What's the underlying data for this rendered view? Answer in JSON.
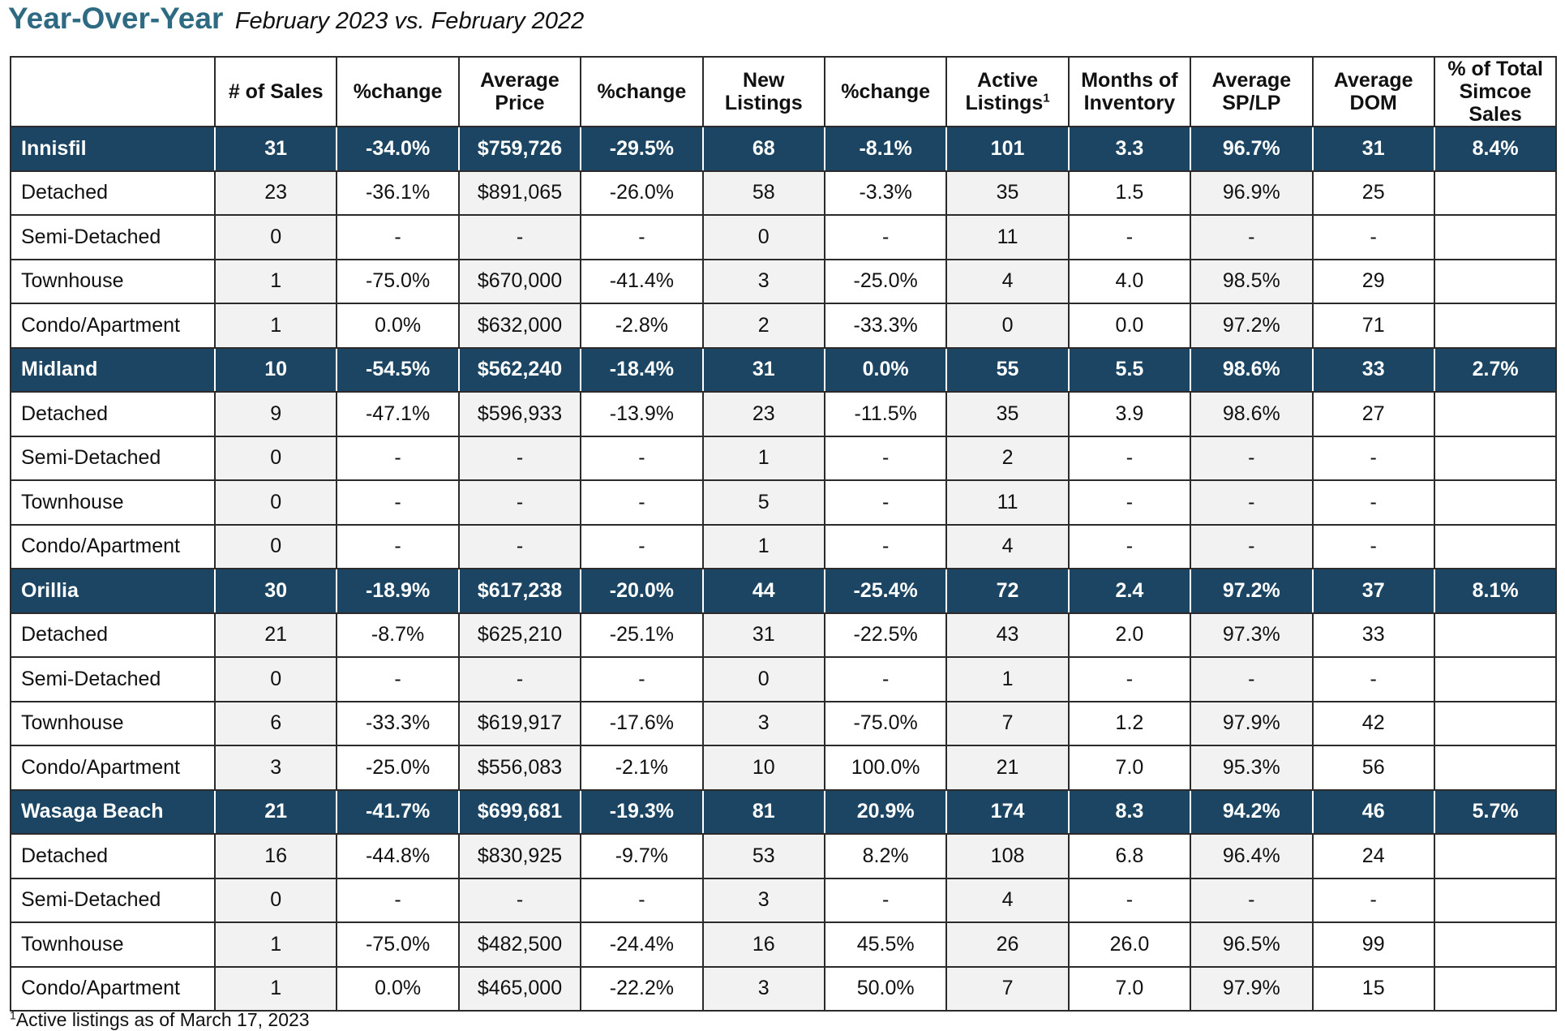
{
  "title": {
    "main": "Year-Over-Year",
    "sub": "February 2023 vs. February 2022"
  },
  "table": {
    "headers": [
      "",
      "# of Sales",
      "%change",
      "Average Price",
      "%change",
      "New Listings",
      "%change",
      "Active Listings",
      "Months of Inventory",
      "Average SP/LP",
      "Average DOM",
      "% of Total Simcoe Sales"
    ],
    "header_footnote_mark": "1",
    "rows": [
      {
        "type": "region",
        "cells": [
          "Innisfil",
          "31",
          "-34.0%",
          "$759,726",
          "-29.5%",
          "68",
          "-8.1%",
          "101",
          "3.3",
          "96.7%",
          "31",
          "8.4%"
        ]
      },
      {
        "type": "sub",
        "cells": [
          "Detached",
          "23",
          "-36.1%",
          "$891,065",
          "-26.0%",
          "58",
          "-3.3%",
          "35",
          "1.5",
          "96.9%",
          "25",
          ""
        ]
      },
      {
        "type": "sub",
        "cells": [
          "Semi-Detached",
          "0",
          "-",
          "-",
          "-",
          "0",
          "-",
          "11",
          "-",
          "-",
          "-",
          ""
        ]
      },
      {
        "type": "sub",
        "cells": [
          "Townhouse",
          "1",
          "-75.0%",
          "$670,000",
          "-41.4%",
          "3",
          "-25.0%",
          "4",
          "4.0",
          "98.5%",
          "29",
          ""
        ]
      },
      {
        "type": "sub",
        "cells": [
          "Condo/Apartment",
          "1",
          "0.0%",
          "$632,000",
          "-2.8%",
          "2",
          "-33.3%",
          "0",
          "0.0",
          "97.2%",
          "71",
          ""
        ]
      },
      {
        "type": "region",
        "cells": [
          "Midland",
          "10",
          "-54.5%",
          "$562,240",
          "-18.4%",
          "31",
          "0.0%",
          "55",
          "5.5",
          "98.6%",
          "33",
          "2.7%"
        ]
      },
      {
        "type": "sub",
        "cells": [
          "Detached",
          "9",
          "-47.1%",
          "$596,933",
          "-13.9%",
          "23",
          "-11.5%",
          "35",
          "3.9",
          "98.6%",
          "27",
          ""
        ]
      },
      {
        "type": "sub",
        "cells": [
          "Semi-Detached",
          "0",
          "-",
          "-",
          "-",
          "1",
          "-",
          "2",
          "-",
          "-",
          "-",
          ""
        ]
      },
      {
        "type": "sub",
        "cells": [
          "Townhouse",
          "0",
          "-",
          "-",
          "-",
          "5",
          "-",
          "11",
          "-",
          "-",
          "-",
          ""
        ]
      },
      {
        "type": "sub",
        "cells": [
          "Condo/Apartment",
          "0",
          "-",
          "-",
          "-",
          "1",
          "-",
          "4",
          "-",
          "-",
          "-",
          ""
        ]
      },
      {
        "type": "region",
        "cells": [
          "Orillia",
          "30",
          "-18.9%",
          "$617,238",
          "-20.0%",
          "44",
          "-25.4%",
          "72",
          "2.4",
          "97.2%",
          "37",
          "8.1%"
        ]
      },
      {
        "type": "sub",
        "cells": [
          "Detached",
          "21",
          "-8.7%",
          "$625,210",
          "-25.1%",
          "31",
          "-22.5%",
          "43",
          "2.0",
          "97.3%",
          "33",
          ""
        ]
      },
      {
        "type": "sub",
        "cells": [
          "Semi-Detached",
          "0",
          "-",
          "-",
          "-",
          "0",
          "-",
          "1",
          "-",
          "-",
          "-",
          ""
        ]
      },
      {
        "type": "sub",
        "cells": [
          "Townhouse",
          "6",
          "-33.3%",
          "$619,917",
          "-17.6%",
          "3",
          "-75.0%",
          "7",
          "1.2",
          "97.9%",
          "42",
          ""
        ]
      },
      {
        "type": "sub",
        "cells": [
          "Condo/Apartment",
          "3",
          "-25.0%",
          "$556,083",
          "-2.1%",
          "10",
          "100.0%",
          "21",
          "7.0",
          "95.3%",
          "56",
          ""
        ]
      },
      {
        "type": "region",
        "cells": [
          "Wasaga Beach",
          "21",
          "-41.7%",
          "$699,681",
          "-19.3%",
          "81",
          "20.9%",
          "174",
          "8.3",
          "94.2%",
          "46",
          "5.7%"
        ]
      },
      {
        "type": "sub",
        "cells": [
          "Detached",
          "16",
          "-44.8%",
          "$830,925",
          "-9.7%",
          "53",
          "8.2%",
          "108",
          "6.8",
          "96.4%",
          "24",
          ""
        ]
      },
      {
        "type": "sub",
        "cells": [
          "Semi-Detached",
          "0",
          "-",
          "-",
          "-",
          "3",
          "-",
          "4",
          "-",
          "-",
          "-",
          ""
        ]
      },
      {
        "type": "sub",
        "cells": [
          "Townhouse",
          "1",
          "-75.0%",
          "$482,500",
          "-24.4%",
          "16",
          "45.5%",
          "26",
          "26.0",
          "96.5%",
          "99",
          ""
        ]
      },
      {
        "type": "sub",
        "cells": [
          "Condo/Apartment",
          "1",
          "0.0%",
          "$465,000",
          "-22.2%",
          "3",
          "50.0%",
          "7",
          "7.0",
          "97.9%",
          "15",
          ""
        ]
      }
    ]
  },
  "footnote": {
    "mark": "1",
    "text": "Active listings as of March 17, 2023"
  },
  "colors": {
    "title": "#2e6b83",
    "region_row_bg": "#1b4562",
    "region_row_text": "#ffffff",
    "alt_cell_bg": "#f2f2f2",
    "border": "#2b2b2b"
  }
}
